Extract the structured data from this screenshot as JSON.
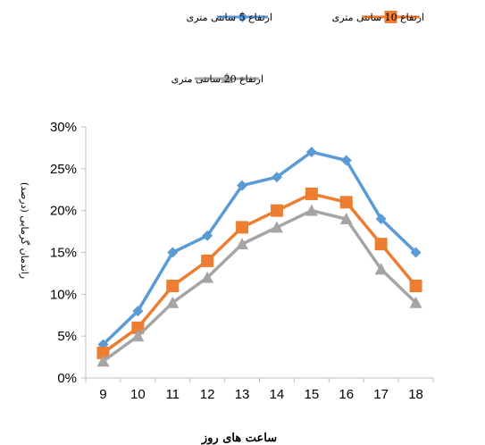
{
  "chart_data": {
    "type": "line",
    "xlabel": "ساعت های روز",
    "ylabel": "راندمان گرمایی (درصد)",
    "categories": [
      "9",
      "10",
      "11",
      "12",
      "13",
      "14",
      "15",
      "16",
      "17",
      "18"
    ],
    "ylim": [
      0,
      0.3
    ],
    "y_ticks": [
      "0%",
      "5%",
      "10%",
      "15%",
      "20%",
      "25%",
      "30%"
    ],
    "y_tick_values": [
      0,
      0.05,
      0.1,
      0.15,
      0.2,
      0.25,
      0.3
    ],
    "grid": false,
    "legend_placement": "top",
    "series": [
      {
        "name": "ارتفاع 5 سانتی متری",
        "color": "#5b9bd5",
        "marker": "diamond",
        "values": [
          0.04,
          0.08,
          0.15,
          0.17,
          0.23,
          0.24,
          0.27,
          0.26,
          0.19,
          0.15
        ]
      },
      {
        "name": "ارتفاع 10 سانتی متری",
        "color": "#ed7d31",
        "marker": "square",
        "values": [
          0.03,
          0.06,
          0.11,
          0.14,
          0.18,
          0.2,
          0.22,
          0.21,
          0.16,
          0.11
        ]
      },
      {
        "name": "ارتفاع 20 سانتی متری",
        "color": "#a5a5a5",
        "marker": "triangle",
        "values": [
          0.02,
          0.05,
          0.09,
          0.12,
          0.16,
          0.18,
          0.2,
          0.19,
          0.13,
          0.09
        ]
      }
    ]
  }
}
